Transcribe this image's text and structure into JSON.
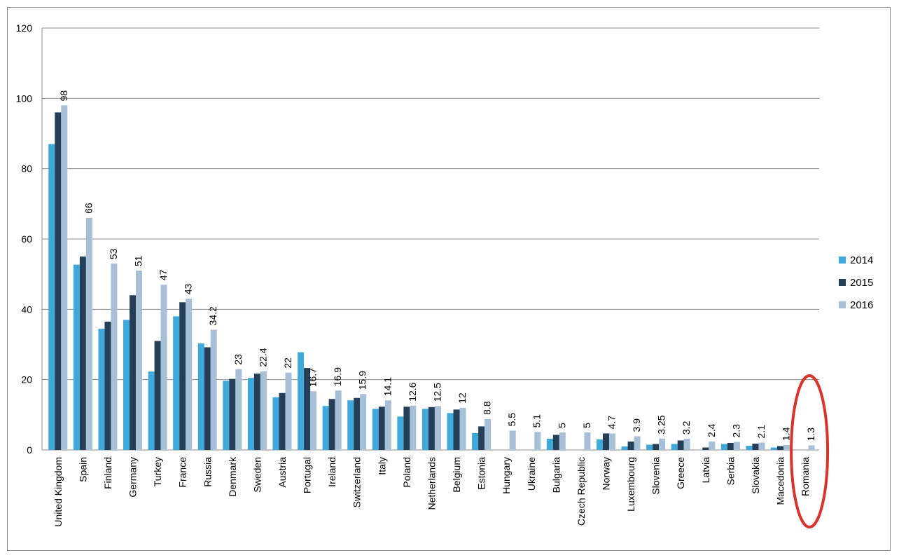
{
  "chart_data": {
    "type": "bar",
    "title": "",
    "xlabel": "",
    "ylabel": "",
    "ylim": [
      0,
      120
    ],
    "yticks": [
      0,
      20,
      40,
      60,
      80,
      100,
      120
    ],
    "grid": "horizontal",
    "legend_position": "right",
    "categories": [
      "United Kingdom",
      "Spain",
      "Finland",
      "Germany",
      "Turkey",
      "France",
      "Russia",
      "Denmark",
      "Sweden",
      "Austria",
      "Portugal",
      "Ireland",
      "Switzerland",
      "Italy",
      "Poland",
      "Netherlands",
      "Belgium",
      "Estonia",
      "Hungary",
      "Ukraine",
      "Bulgaria",
      "Czech Republic",
      "Norway",
      "Luxembourg",
      "Slovenia",
      "Greece",
      "Latvia",
      "Serbia",
      "Slovakia",
      "Macedonia",
      "Romania"
    ],
    "series": [
      {
        "name": "2014",
        "color": "#3fa9dc",
        "values": [
          87,
          52.7,
          34.5,
          37,
          22.3,
          38,
          30.3,
          19.7,
          20.5,
          15,
          27.8,
          12.5,
          14.1,
          11.7,
          9.5,
          11.7,
          10.5,
          4.8,
          0,
          0,
          3.2,
          0,
          3,
          1,
          1.5,
          1.7,
          0,
          1.7,
          1.2,
          0.7,
          0
        ]
      },
      {
        "name": "2015",
        "color": "#243f57",
        "values": [
          96,
          55,
          36.5,
          44,
          31,
          42,
          29.2,
          20.2,
          21.7,
          16.2,
          23.3,
          14.5,
          14.8,
          12.3,
          12.3,
          12.2,
          11.5,
          6.7,
          0,
          0,
          4.3,
          0,
          4.7,
          2.4,
          1.7,
          2.7,
          0.7,
          2,
          1.8,
          1.1,
          0
        ]
      },
      {
        "name": "2016",
        "color": "#a7c0d8",
        "values": [
          98,
          66,
          53,
          51,
          47,
          43,
          34.2,
          23,
          22.4,
          22,
          16.7,
          16.9,
          15.9,
          14.1,
          12.6,
          12.5,
          12,
          8.8,
          5.5,
          5.1,
          5,
          5,
          4.7,
          3.9,
          3.25,
          3.2,
          2.4,
          2.3,
          2.1,
          1.4,
          1.3
        ]
      }
    ],
    "data_labels_2016": [
      "98",
      "66",
      "53",
      "51",
      "47",
      "43",
      "34.2",
      "23",
      "22.4",
      "22",
      "16.7",
      "16.9",
      "15.9",
      "14.1",
      "12.6",
      "12.5",
      "12",
      "8.8",
      "5.5",
      "5.1",
      "5",
      "5",
      "4.7",
      "3.9",
      "3.25",
      "3.2",
      "2.4",
      "2.3",
      "2.1",
      "1.4",
      "1.3"
    ],
    "annotations": [
      {
        "type": "ellipse-highlight",
        "category": "Romania",
        "color": "#d9342b"
      }
    ]
  }
}
